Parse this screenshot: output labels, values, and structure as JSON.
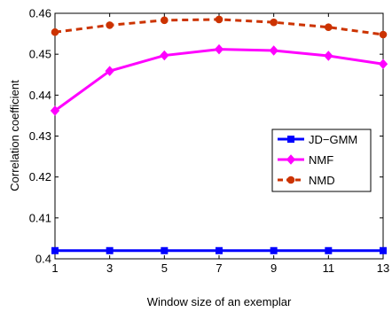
{
  "chart_data": {
    "type": "line",
    "xlabel": "Window size of an exemplar",
    "ylabel": "Correlation coefficient",
    "xlim": [
      1,
      13
    ],
    "ylim": [
      0.4,
      0.46
    ],
    "x": [
      1,
      3,
      5,
      7,
      9,
      11,
      13
    ],
    "xticks": [
      "1",
      "3",
      "5",
      "7",
      "9",
      "11",
      "13"
    ],
    "yticks": [
      "0.4",
      "0.41",
      "0.42",
      "0.43",
      "0.44",
      "0.45",
      "0.46"
    ],
    "grid": false,
    "legend_position": "right",
    "series": [
      {
        "name": "JD−GMM",
        "values": [
          0.402,
          0.402,
          0.402,
          0.402,
          0.402,
          0.402,
          0.402
        ],
        "color": "#0000ff",
        "line_style": "solid",
        "marker": "square"
      },
      {
        "name": "NMF",
        "values": [
          0.4362,
          0.4459,
          0.4497,
          0.4512,
          0.4509,
          0.4496,
          0.4476
        ],
        "color": "#ff00ff",
        "line_style": "solid",
        "marker": "diamond"
      },
      {
        "name": "NMD",
        "values": [
          0.4554,
          0.4571,
          0.4583,
          0.4585,
          0.4578,
          0.4566,
          0.4548
        ],
        "color": "#cc3300",
        "line_style": "dashed",
        "marker": "circle"
      }
    ]
  }
}
